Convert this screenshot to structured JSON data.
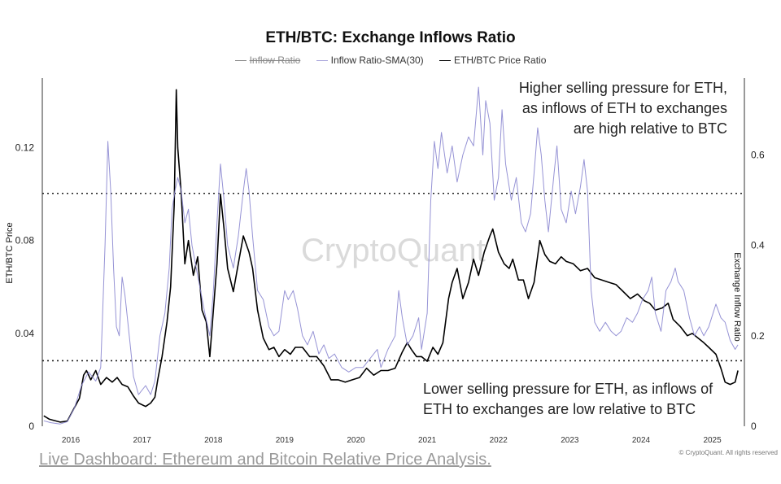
{
  "chart_data": {
    "type": "line",
    "title": "ETH/BTC: Exchange Inflows Ratio",
    "legend": [
      {
        "name": "Inflow Ratio",
        "color": "#888888",
        "hidden": true
      },
      {
        "name": "Inflow Ratio-SMA(30)",
        "color": "#8b87d0",
        "hidden": false
      },
      {
        "name": "ETH/BTC Price Ratio",
        "color": "#000000",
        "hidden": false
      }
    ],
    "ylabel_left": "ETH/BTC Price",
    "ylabel_right": "Exchange Inflow Ratio",
    "ylim_left": [
      0,
      0.15
    ],
    "ylim_right": [
      0,
      0.77
    ],
    "xlim": [
      2015.6,
      2025.45
    ],
    "left_ticks": [
      "0",
      "0.04",
      "0.08",
      "0.12"
    ],
    "left_tick_values": [
      0,
      0.04,
      0.08,
      0.12
    ],
    "right_ticks": [
      "0",
      "0.2",
      "0.4",
      "0.6"
    ],
    "right_tick_values": [
      0,
      0.2,
      0.4,
      0.6
    ],
    "x_ticks": [
      "2016",
      "2017",
      "2018",
      "2019",
      "2020",
      "2021",
      "2022",
      "2023",
      "2024",
      "2025"
    ],
    "x_tick_values": [
      2016,
      2017,
      2018,
      2019,
      2020,
      2021,
      2022,
      2023,
      2024,
      2025
    ],
    "threshold_lines": [
      0.515,
      0.145
    ],
    "series": [
      {
        "name": "ETH/BTC Price Ratio",
        "axis": "left",
        "color": "#000000",
        "points": [
          [
            2015.62,
            0.0045
          ],
          [
            2015.7,
            0.003
          ],
          [
            2015.85,
            0.0018
          ],
          [
            2015.95,
            0.0022
          ],
          [
            2016.05,
            0.008
          ],
          [
            2016.12,
            0.012
          ],
          [
            2016.18,
            0.022
          ],
          [
            2016.22,
            0.024
          ],
          [
            2016.28,
            0.02
          ],
          [
            2016.35,
            0.024
          ],
          [
            2016.42,
            0.018
          ],
          [
            2016.5,
            0.021
          ],
          [
            2016.58,
            0.019
          ],
          [
            2016.65,
            0.021
          ],
          [
            2016.72,
            0.018
          ],
          [
            2016.8,
            0.017
          ],
          [
            2016.88,
            0.013
          ],
          [
            2016.95,
            0.01
          ],
          [
            2017.05,
            0.0085
          ],
          [
            2017.12,
            0.01
          ],
          [
            2017.18,
            0.0125
          ],
          [
            2017.22,
            0.02
          ],
          [
            2017.28,
            0.03
          ],
          [
            2017.35,
            0.045
          ],
          [
            2017.4,
            0.06
          ],
          [
            2017.45,
            0.095
          ],
          [
            2017.48,
            0.145
          ],
          [
            2017.5,
            0.12
          ],
          [
            2017.55,
            0.1
          ],
          [
            2017.6,
            0.07
          ],
          [
            2017.65,
            0.08
          ],
          [
            2017.72,
            0.065
          ],
          [
            2017.78,
            0.073
          ],
          [
            2017.84,
            0.05
          ],
          [
            2017.9,
            0.045
          ],
          [
            2017.95,
            0.03
          ],
          [
            2018.0,
            0.05
          ],
          [
            2018.05,
            0.07
          ],
          [
            2018.1,
            0.1
          ],
          [
            2018.15,
            0.085
          ],
          [
            2018.2,
            0.068
          ],
          [
            2018.28,
            0.058
          ],
          [
            2018.35,
            0.07
          ],
          [
            2018.42,
            0.082
          ],
          [
            2018.5,
            0.075
          ],
          [
            2018.55,
            0.068
          ],
          [
            2018.62,
            0.05
          ],
          [
            2018.7,
            0.038
          ],
          [
            2018.78,
            0.033
          ],
          [
            2018.85,
            0.034
          ],
          [
            2018.92,
            0.03
          ],
          [
            2019.0,
            0.033
          ],
          [
            2019.08,
            0.031
          ],
          [
            2019.15,
            0.034
          ],
          [
            2019.25,
            0.034
          ],
          [
            2019.35,
            0.03
          ],
          [
            2019.45,
            0.03
          ],
          [
            2019.55,
            0.026
          ],
          [
            2019.65,
            0.02
          ],
          [
            2019.75,
            0.02
          ],
          [
            2019.85,
            0.019
          ],
          [
            2019.95,
            0.02
          ],
          [
            2020.05,
            0.021
          ],
          [
            2020.15,
            0.025
          ],
          [
            2020.25,
            0.022
          ],
          [
            2020.35,
            0.024
          ],
          [
            2020.45,
            0.024
          ],
          [
            2020.55,
            0.025
          ],
          [
            2020.65,
            0.032
          ],
          [
            2020.72,
            0.036
          ],
          [
            2020.78,
            0.033
          ],
          [
            2020.85,
            0.03
          ],
          [
            2020.92,
            0.03
          ],
          [
            2021.0,
            0.028
          ],
          [
            2021.08,
            0.034
          ],
          [
            2021.15,
            0.031
          ],
          [
            2021.22,
            0.036
          ],
          [
            2021.3,
            0.055
          ],
          [
            2021.35,
            0.062
          ],
          [
            2021.42,
            0.068
          ],
          [
            2021.5,
            0.055
          ],
          [
            2021.58,
            0.062
          ],
          [
            2021.65,
            0.072
          ],
          [
            2021.72,
            0.065
          ],
          [
            2021.8,
            0.075
          ],
          [
            2021.88,
            0.082
          ],
          [
            2021.92,
            0.085
          ],
          [
            2021.96,
            0.08
          ],
          [
            2022.0,
            0.075
          ],
          [
            2022.08,
            0.07
          ],
          [
            2022.15,
            0.068
          ],
          [
            2022.2,
            0.072
          ],
          [
            2022.28,
            0.063
          ],
          [
            2022.35,
            0.063
          ],
          [
            2022.42,
            0.055
          ],
          [
            2022.5,
            0.062
          ],
          [
            2022.58,
            0.08
          ],
          [
            2022.65,
            0.074
          ],
          [
            2022.72,
            0.071
          ],
          [
            2022.8,
            0.07
          ],
          [
            2022.88,
            0.073
          ],
          [
            2022.95,
            0.071
          ],
          [
            2023.05,
            0.07
          ],
          [
            2023.15,
            0.067
          ],
          [
            2023.25,
            0.068
          ],
          [
            2023.35,
            0.064
          ],
          [
            2023.45,
            0.063
          ],
          [
            2023.55,
            0.062
          ],
          [
            2023.65,
            0.061
          ],
          [
            2023.75,
            0.058
          ],
          [
            2023.85,
            0.055
          ],
          [
            2023.95,
            0.057
          ],
          [
            2024.05,
            0.054
          ],
          [
            2024.12,
            0.053
          ],
          [
            2024.2,
            0.05
          ],
          [
            2024.3,
            0.051
          ],
          [
            2024.38,
            0.053
          ],
          [
            2024.45,
            0.046
          ],
          [
            2024.55,
            0.043
          ],
          [
            2024.65,
            0.039
          ],
          [
            2024.72,
            0.04
          ],
          [
            2024.8,
            0.038
          ],
          [
            2024.88,
            0.036
          ],
          [
            2024.95,
            0.034
          ],
          [
            2025.05,
            0.031
          ],
          [
            2025.12,
            0.025
          ],
          [
            2025.18,
            0.019
          ],
          [
            2025.25,
            0.018
          ],
          [
            2025.32,
            0.019
          ],
          [
            2025.36,
            0.024
          ]
        ]
      },
      {
        "name": "Inflow Ratio-SMA(30)",
        "axis": "right",
        "color": "#8b87d0",
        "points": [
          [
            2015.62,
            0.012
          ],
          [
            2015.72,
            0.008
          ],
          [
            2015.85,
            0.005
          ],
          [
            2015.95,
            0.01
          ],
          [
            2016.05,
            0.04
          ],
          [
            2016.15,
            0.09
          ],
          [
            2016.25,
            0.12
          ],
          [
            2016.35,
            0.1
          ],
          [
            2016.42,
            0.13
          ],
          [
            2016.48,
            0.4
          ],
          [
            2016.52,
            0.63
          ],
          [
            2016.56,
            0.52
          ],
          [
            2016.6,
            0.35
          ],
          [
            2016.64,
            0.22
          ],
          [
            2016.68,
            0.2
          ],
          [
            2016.72,
            0.33
          ],
          [
            2016.76,
            0.29
          ],
          [
            2016.82,
            0.2
          ],
          [
            2016.88,
            0.11
          ],
          [
            2016.95,
            0.07
          ],
          [
            2017.05,
            0.09
          ],
          [
            2017.12,
            0.07
          ],
          [
            2017.18,
            0.1
          ],
          [
            2017.25,
            0.2
          ],
          [
            2017.32,
            0.25
          ],
          [
            2017.38,
            0.35
          ],
          [
            2017.42,
            0.48
          ],
          [
            2017.46,
            0.52
          ],
          [
            2017.5,
            0.55
          ],
          [
            2017.55,
            0.52
          ],
          [
            2017.6,
            0.45
          ],
          [
            2017.65,
            0.48
          ],
          [
            2017.7,
            0.4
          ],
          [
            2017.76,
            0.35
          ],
          [
            2017.82,
            0.3
          ],
          [
            2017.88,
            0.25
          ],
          [
            2017.95,
            0.2
          ],
          [
            2018.0,
            0.3
          ],
          [
            2018.05,
            0.45
          ],
          [
            2018.1,
            0.58
          ],
          [
            2018.15,
            0.5
          ],
          [
            2018.2,
            0.4
          ],
          [
            2018.28,
            0.35
          ],
          [
            2018.35,
            0.42
          ],
          [
            2018.42,
            0.52
          ],
          [
            2018.46,
            0.57
          ],
          [
            2018.5,
            0.52
          ],
          [
            2018.55,
            0.42
          ],
          [
            2018.62,
            0.3
          ],
          [
            2018.7,
            0.28
          ],
          [
            2018.78,
            0.22
          ],
          [
            2018.85,
            0.2
          ],
          [
            2018.92,
            0.21
          ],
          [
            2019.0,
            0.3
          ],
          [
            2019.05,
            0.28
          ],
          [
            2019.12,
            0.3
          ],
          [
            2019.18,
            0.26
          ],
          [
            2019.25,
            0.2
          ],
          [
            2019.32,
            0.18
          ],
          [
            2019.4,
            0.21
          ],
          [
            2019.48,
            0.16
          ],
          [
            2019.55,
            0.18
          ],
          [
            2019.62,
            0.15
          ],
          [
            2019.7,
            0.16
          ],
          [
            2019.8,
            0.13
          ],
          [
            2019.9,
            0.12
          ],
          [
            2020.0,
            0.13
          ],
          [
            2020.1,
            0.13
          ],
          [
            2020.2,
            0.15
          ],
          [
            2020.3,
            0.17
          ],
          [
            2020.35,
            0.13
          ],
          [
            2020.45,
            0.17
          ],
          [
            2020.55,
            0.2
          ],
          [
            2020.6,
            0.3
          ],
          [
            2020.65,
            0.24
          ],
          [
            2020.72,
            0.18
          ],
          [
            2020.8,
            0.2
          ],
          [
            2020.88,
            0.24
          ],
          [
            2020.92,
            0.17
          ],
          [
            2021.0,
            0.25
          ],
          [
            2021.05,
            0.5
          ],
          [
            2021.1,
            0.63
          ],
          [
            2021.15,
            0.57
          ],
          [
            2021.2,
            0.65
          ],
          [
            2021.28,
            0.56
          ],
          [
            2021.35,
            0.62
          ],
          [
            2021.42,
            0.54
          ],
          [
            2021.5,
            0.6
          ],
          [
            2021.58,
            0.64
          ],
          [
            2021.65,
            0.62
          ],
          [
            2021.72,
            0.75
          ],
          [
            2021.78,
            0.6
          ],
          [
            2021.82,
            0.72
          ],
          [
            2021.88,
            0.67
          ],
          [
            2021.94,
            0.5
          ],
          [
            2022.0,
            0.55
          ],
          [
            2022.05,
            0.7
          ],
          [
            2022.1,
            0.58
          ],
          [
            2022.18,
            0.5
          ],
          [
            2022.25,
            0.55
          ],
          [
            2022.32,
            0.45
          ],
          [
            2022.38,
            0.43
          ],
          [
            2022.45,
            0.47
          ],
          [
            2022.5,
            0.56
          ],
          [
            2022.55,
            0.66
          ],
          [
            2022.6,
            0.6
          ],
          [
            2022.65,
            0.5
          ],
          [
            2022.7,
            0.43
          ],
          [
            2022.78,
            0.56
          ],
          [
            2022.82,
            0.62
          ],
          [
            2022.88,
            0.48
          ],
          [
            2022.95,
            0.45
          ],
          [
            2023.02,
            0.52
          ],
          [
            2023.08,
            0.47
          ],
          [
            2023.15,
            0.53
          ],
          [
            2023.2,
            0.59
          ],
          [
            2023.25,
            0.52
          ],
          [
            2023.3,
            0.3
          ],
          [
            2023.35,
            0.23
          ],
          [
            2023.42,
            0.21
          ],
          [
            2023.5,
            0.23
          ],
          [
            2023.58,
            0.21
          ],
          [
            2023.65,
            0.2
          ],
          [
            2023.72,
            0.21
          ],
          [
            2023.8,
            0.24
          ],
          [
            2023.88,
            0.23
          ],
          [
            2023.95,
            0.25
          ],
          [
            2024.02,
            0.28
          ],
          [
            2024.1,
            0.3
          ],
          [
            2024.15,
            0.33
          ],
          [
            2024.2,
            0.25
          ],
          [
            2024.28,
            0.21
          ],
          [
            2024.35,
            0.3
          ],
          [
            2024.42,
            0.32
          ],
          [
            2024.48,
            0.35
          ],
          [
            2024.52,
            0.32
          ],
          [
            2024.6,
            0.3
          ],
          [
            2024.68,
            0.24
          ],
          [
            2024.75,
            0.2
          ],
          [
            2024.82,
            0.22
          ],
          [
            2024.88,
            0.2
          ],
          [
            2024.95,
            0.22
          ],
          [
            2025.05,
            0.27
          ],
          [
            2025.12,
            0.24
          ],
          [
            2025.18,
            0.23
          ],
          [
            2025.25,
            0.19
          ],
          [
            2025.32,
            0.17
          ],
          [
            2025.36,
            0.18
          ]
        ]
      }
    ]
  },
  "annotations": {
    "high": "Higher selling pressure for ETH, as inflows of ETH to exchanges are high relative to BTC",
    "low": "Lower selling pressure for ETH, as inflows of ETH to exchanges are low relative to BTC"
  },
  "watermark": "CryptoQuant",
  "copyright": "© CryptoQuant. All rights reserved",
  "footer_link": "Live Dashboard: Ethereum and Bitcoin Relative Price Analysis."
}
